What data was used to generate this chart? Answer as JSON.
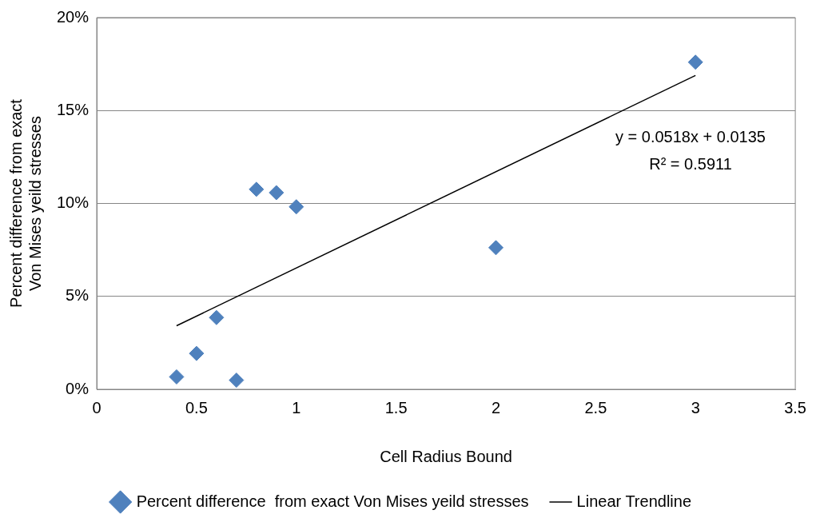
{
  "chart_data": {
    "type": "scatter",
    "xlabel": "Cell Radius Bound",
    "ylabel": "Percent difference from exact Von Mises yeild stresses",
    "xlim": [
      0,
      3.5
    ],
    "xticks": [
      0,
      0.5,
      1,
      1.5,
      2,
      2.5,
      3,
      3.5
    ],
    "ylim": [
      0,
      20
    ],
    "yticks": [
      {
        "value": 0,
        "label": "0%"
      },
      {
        "value": 5,
        "label": "5%"
      },
      {
        "value": 10,
        "label": "10%"
      },
      {
        "value": 15,
        "label": "15%"
      },
      {
        "value": 20,
        "label": "20%"
      }
    ],
    "grid": "y",
    "legend": "bottom",
    "marker": "diamond",
    "annotations": [
      "y = 0.0518x + 0.0135",
      "R² = 0.5911"
    ],
    "series": [
      {
        "name": "Percent difference  from exact Von Mises yeild stresses",
        "color": "#4f81bd",
        "x": [
          0.4,
          0.5,
          0.6,
          0.7,
          0.8,
          0.9,
          1.0,
          2.0,
          3.0
        ],
        "values": [
          0.67,
          1.93,
          3.86,
          0.49,
          10.76,
          10.58,
          9.82,
          7.62,
          17.6
        ]
      },
      {
        "name": "Linear Trendline",
        "type": "line",
        "color": "#000000",
        "marker": "none",
        "x": [
          0.4,
          3
        ],
        "values": [
          3.42,
          16.89
        ]
      }
    ]
  }
}
